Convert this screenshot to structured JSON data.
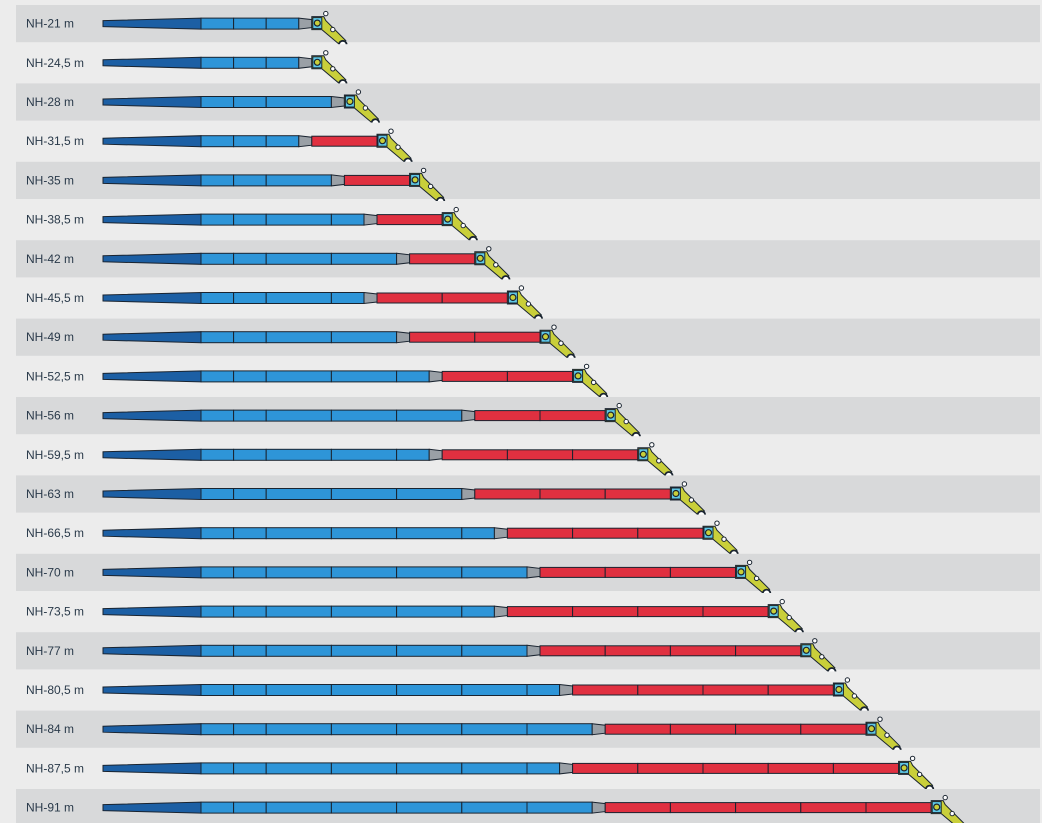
{
  "diagram": {
    "colors": {
      "row_dark": "#d8d9da",
      "row_light": "#ececec",
      "base_fill": "#1c5fa4",
      "blue_fill": "#2e95d8",
      "red_fill": "#e03040",
      "joint_fill": "#9aa0a6",
      "outline": "#1a2430",
      "head_yellow": "#c9cf3a",
      "head_cyan": "#5ec8e6",
      "label": "#2a3a4a"
    },
    "rows": [
      {
        "label": "NH-21 m",
        "blue_sections": 3,
        "red_sections": 0
      },
      {
        "label": "NH-24,5 m",
        "blue_sections": 3,
        "red_sections": 0
      },
      {
        "label": "NH-28 m",
        "blue_sections": 4,
        "red_sections": 0
      },
      {
        "label": "NH-31,5 m",
        "blue_sections": 3,
        "red_sections": 1
      },
      {
        "label": "NH-35 m",
        "blue_sections": 4,
        "red_sections": 1
      },
      {
        "label": "NH-38,5 m",
        "blue_sections": 5,
        "red_sections": 1
      },
      {
        "label": "NH-42 m",
        "blue_sections": 6,
        "red_sections": 1
      },
      {
        "label": "NH-45,5 m",
        "blue_sections": 5,
        "red_sections": 2
      },
      {
        "label": "NH-49 m",
        "blue_sections": 6,
        "red_sections": 2
      },
      {
        "label": "NH-52,5 m",
        "blue_sections": 7,
        "red_sections": 2
      },
      {
        "label": "NH-56 m",
        "blue_sections": 8,
        "red_sections": 2
      },
      {
        "label": "NH-59,5 m",
        "blue_sections": 7,
        "red_sections": 3
      },
      {
        "label": "NH-63 m",
        "blue_sections": 8,
        "red_sections": 3
      },
      {
        "label": "NH-66,5 m",
        "blue_sections": 9,
        "red_sections": 3
      },
      {
        "label": "NH-70 m",
        "blue_sections": 10,
        "red_sections": 3
      },
      {
        "label": "NH-73,5 m",
        "blue_sections": 9,
        "red_sections": 4
      },
      {
        "label": "NH-77 m",
        "blue_sections": 10,
        "red_sections": 4
      },
      {
        "label": "NH-80,5 m",
        "blue_sections": 11,
        "red_sections": 4
      },
      {
        "label": "NH-84 m",
        "blue_sections": 12,
        "red_sections": 4
      },
      {
        "label": "NH-87,5 m",
        "blue_sections": 11,
        "red_sections": 5
      },
      {
        "label": "NH-91 m",
        "blue_sections": 12,
        "red_sections": 5
      }
    ]
  }
}
